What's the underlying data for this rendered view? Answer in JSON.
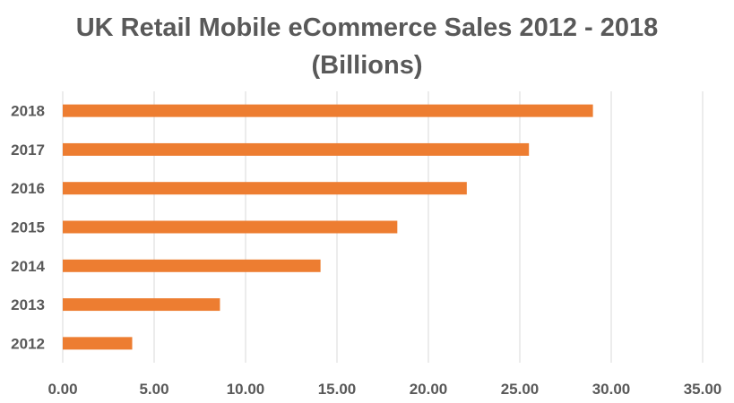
{
  "chart_data": {
    "type": "bar",
    "orientation": "horizontal",
    "title_line1": "UK Retail Mobile eCommerce Sales 2012 - 2018",
    "title_line2": "(Billions)",
    "categories": [
      "2012",
      "2013",
      "2014",
      "2015",
      "2016",
      "2017",
      "2018"
    ],
    "values": [
      3.8,
      8.6,
      14.1,
      18.3,
      22.1,
      25.5,
      29.0
    ],
    "x_ticks": [
      "0.00",
      "5.00",
      "10.00",
      "15.00",
      "20.00",
      "25.00",
      "30.00",
      "35.00"
    ],
    "xlim": [
      0,
      35
    ],
    "xlabel": "",
    "ylabel": "",
    "grid": "vertical",
    "legend": "none",
    "bar_color": "#ED7D31",
    "grid_color": "#D9D9D9",
    "text_color": "#595959"
  }
}
